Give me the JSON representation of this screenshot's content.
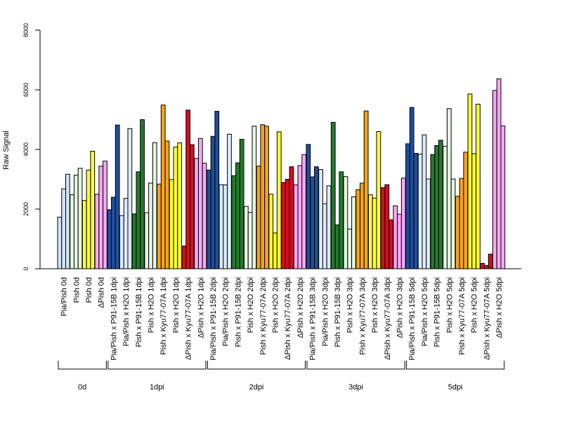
{
  "chart_data": {
    "type": "bar",
    "title": "",
    "xlabel": "",
    "ylabel": "Raw Signal",
    "ylim": [
      0,
      8000
    ],
    "yticks": [
      0,
      2000,
      4000,
      6000,
      8000
    ],
    "grid": false,
    "colors": {
      "Pia/Pish": "#cfe2f7",
      "Pish": "#ffff33",
      "dPish": "#f7a8f5",
      "Pia/Pish x P91-15B": "#1f4f9c",
      "Pia/Pish x H2O": "#dcebf9",
      "Pish x P91-15B": "#247a2d",
      "Pish x H2O": "#e4f5e0",
      "Pish x Kyu77-07A": "#f7a31e",
      "dPish x Kyu77-07A": "#d30e22"
    },
    "categories": [
      {
        "label": "Pia/Pish 0d",
        "color_key": "Pia/Pish",
        "values": [
          1730,
          2680,
          3170
        ]
      },
      {
        "label": "Pish 0d",
        "color_key": "Pish x H2O",
        "values": [
          2480,
          3140,
          3370
        ]
      },
      {
        "label": "Pish 0d",
        "color_key": "Pish",
        "values": [
          2290,
          3310,
          3940
        ]
      },
      {
        "label": "ΔPish 0d",
        "color_key": "dPish",
        "values": [
          2500,
          3440,
          3610
        ]
      },
      {
        "label": "Pia/Pish x P91-15B 1dpi",
        "color_key": "Pia/Pish x P91-15B",
        "values": [
          1980,
          2400,
          4820
        ]
      },
      {
        "label": "Pia/Pish x H2O 1dpi",
        "color_key": "Pia/Pish x H2O",
        "values": [
          1780,
          2360,
          4700
        ]
      },
      {
        "label": "Pish x P91-15B 1dpi",
        "color_key": "Pish x P91-15B",
        "values": [
          1840,
          3250,
          5000
        ]
      },
      {
        "label": "Pish x H2O 1dpi",
        "color_key": "Pish x H2O",
        "values": [
          1880,
          2870,
          4230
        ]
      },
      {
        "label": "Pish x Kyu77-07A 1dpi",
        "color_key": "Pish x Kyu77-07A",
        "values": [
          2840,
          5490,
          4280
        ]
      },
      {
        "label": "Pish x H2O 1dpi",
        "color_key": "Pish",
        "values": [
          2990,
          4080,
          4220
        ]
      },
      {
        "label": "ΔPish x Kyu77-07A 1dpi",
        "color_key": "dPish x Kyu77-07A",
        "values": [
          760,
          5320,
          4160
        ]
      },
      {
        "label": "ΔPish x H2O 1dpi",
        "color_key": "dPish",
        "values": [
          3700,
          4370,
          3540
        ]
      },
      {
        "label": "Pia/Pish x P91-15B 2dpi",
        "color_key": "Pia/Pish x P91-15B",
        "values": [
          3310,
          4440,
          5280
        ]
      },
      {
        "label": "Pia/Pish x H2O 2dpi",
        "color_key": "Pia/Pish x H2O",
        "values": [
          2820,
          2810,
          4510
        ]
      },
      {
        "label": "Pish x P91-15B 2dpi",
        "color_key": "Pish x P91-15B",
        "values": [
          3120,
          3550,
          4340
        ]
      },
      {
        "label": "Pish x H2O 2dpi",
        "color_key": "Pish x H2O",
        "values": [
          2090,
          1890,
          4780
        ]
      },
      {
        "label": "Pish x Kyu77-07A 2dpi",
        "color_key": "Pish x Kyu77-07A",
        "values": [
          3440,
          4830,
          4780
        ]
      },
      {
        "label": "Pish x H2O 2dpi",
        "color_key": "Pish",
        "values": [
          2500,
          1200,
          4590
        ]
      },
      {
        "label": "ΔPish x Kyu77-07A 2dpi",
        "color_key": "dPish x Kyu77-07A",
        "values": [
          2890,
          3000,
          3420
        ]
      },
      {
        "label": "ΔPish x H2O 2dpi",
        "color_key": "dPish",
        "values": [
          2810,
          3460,
          3830
        ]
      },
      {
        "label": "Pia/Pish x P91-15B 3dpi",
        "color_key": "Pia/Pish x P91-15B",
        "values": [
          4170,
          3080,
          3420
        ]
      },
      {
        "label": "Pia/Pish x H2O 3dpi",
        "color_key": "Pia/Pish x H2O",
        "values": [
          3330,
          2180,
          2780
        ]
      },
      {
        "label": "Pish x P91-15B 3dpi",
        "color_key": "Pish x P91-15B",
        "values": [
          4910,
          1470,
          3250
        ]
      },
      {
        "label": "Pish x H2O 3dpi",
        "color_key": "Pish x H2O",
        "values": [
          3090,
          1330,
          2410
        ]
      },
      {
        "label": "Pish x Kyu77-07A 3dpi",
        "color_key": "Pish x Kyu77-07A",
        "values": [
          2650,
          2870,
          5290
        ]
      },
      {
        "label": "Pish x H2O 3dpi",
        "color_key": "Pish",
        "values": [
          2480,
          2370,
          4600
        ]
      },
      {
        "label": "ΔPish x Kyu77-07A 3dpi",
        "color_key": "dPish x Kyu77-07A",
        "values": [
          2720,
          2820,
          1640
        ]
      },
      {
        "label": "ΔPish x H2O 3dpi",
        "color_key": "dPish",
        "values": [
          2110,
          1830,
          3040
        ]
      },
      {
        "label": "Pia/Pish x P91-15B 5dpi",
        "color_key": "Pia/Pish x P91-15B",
        "values": [
          4190,
          5410,
          3870
        ]
      },
      {
        "label": "Pia/Pish x H2O 5dpi",
        "color_key": "Pia/Pish x H2O",
        "values": [
          3840,
          4490,
          3010
        ]
      },
      {
        "label": "Pish x P91-15B 5dpi",
        "color_key": "Pish x P91-15B",
        "values": [
          3830,
          4130,
          4310
        ]
      },
      {
        "label": "Pish x H2O 5dpi",
        "color_key": "Pish x H2O",
        "values": [
          4110,
          5370,
          3010
        ]
      },
      {
        "label": "Pish x Kyu77-07A 5dpi",
        "color_key": "Pish x Kyu77-07A",
        "values": [
          2430,
          3030,
          3910
        ]
      },
      {
        "label": "Pish x H2O 5dpi",
        "color_key": "Pish",
        "values": [
          5860,
          3860,
          5520
        ]
      },
      {
        "label": "ΔPish x Kyu77-07A 5dpi",
        "color_key": "dPish x Kyu77-07A",
        "values": [
          180,
          110,
          490
        ]
      },
      {
        "label": "ΔPish x H2O 5dpi",
        "color_key": "dPish",
        "values": [
          5980,
          6370,
          4790
        ]
      }
    ],
    "groups": [
      {
        "label": "0d",
        "start": 0,
        "end": 3
      },
      {
        "label": "1dpi",
        "start": 4,
        "end": 11
      },
      {
        "label": "2dpi",
        "start": 12,
        "end": 19
      },
      {
        "label": "3dpi",
        "start": 20,
        "end": 27
      },
      {
        "label": "5dpi",
        "start": 28,
        "end": 35
      }
    ]
  }
}
